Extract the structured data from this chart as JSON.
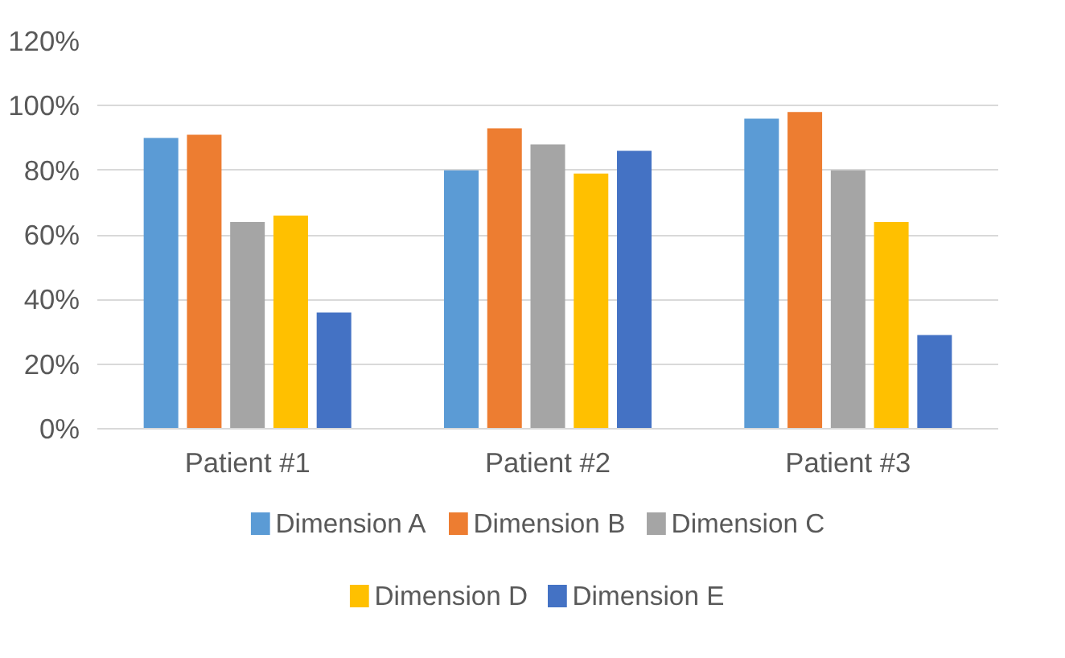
{
  "chart_data": {
    "type": "bar",
    "categories": [
      "Patient #1",
      "Patient #2",
      "Patient #3"
    ],
    "series": [
      {
        "name": "Dimension A",
        "color": "#5b9bd5",
        "values": [
          90,
          80,
          96
        ]
      },
      {
        "name": "Dimension B",
        "color": "#ed7d31",
        "values": [
          91,
          93,
          98
        ]
      },
      {
        "name": "Dimension C",
        "color": "#a5a5a5",
        "values": [
          64,
          88,
          80
        ]
      },
      {
        "name": "Dimension D",
        "color": "#ffc000",
        "values": [
          66,
          79,
          64
        ]
      },
      {
        "name": "Dimension E",
        "color": "#4472c4",
        "values": [
          36,
          86,
          29
        ]
      }
    ],
    "ylim": [
      0,
      120
    ],
    "yticks": [
      {
        "value": 0,
        "label": "0%"
      },
      {
        "value": 20,
        "label": "20%"
      },
      {
        "value": 40,
        "label": "40%"
      },
      {
        "value": 60,
        "label": "60%"
      },
      {
        "value": 80,
        "label": "80%"
      },
      {
        "value": 100,
        "label": "100%"
      },
      {
        "value": 120,
        "label": "120%"
      }
    ],
    "grid": "y",
    "legend": "bottom"
  }
}
